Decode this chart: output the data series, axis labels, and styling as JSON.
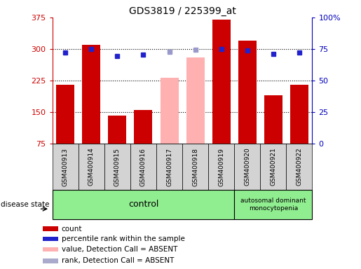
{
  "title": "GDS3819 / 225399_at",
  "samples": [
    "GSM400913",
    "GSM400914",
    "GSM400915",
    "GSM400916",
    "GSM400917",
    "GSM400918",
    "GSM400919",
    "GSM400920",
    "GSM400921",
    "GSM400922"
  ],
  "bar_values": [
    215,
    310,
    143,
    155,
    232,
    280,
    370,
    320,
    190,
    215
  ],
  "bar_colors": [
    "#cc0000",
    "#cc0000",
    "#cc0000",
    "#cc0000",
    "#ffb0b0",
    "#ffb0b0",
    "#cc0000",
    "#cc0000",
    "#cc0000",
    "#cc0000"
  ],
  "dot_values": [
    291,
    300,
    284,
    287,
    293,
    299,
    300,
    297,
    289,
    291
  ],
  "dot_colors": [
    "#2222cc",
    "#2222cc",
    "#2222cc",
    "#2222cc",
    "#9999cc",
    "#9999cc",
    "#2222cc",
    "#2222cc",
    "#2222cc",
    "#2222cc"
  ],
  "ylim_left": [
    75,
    375
  ],
  "yticks_left": [
    75,
    150,
    225,
    300,
    375
  ],
  "ytick_labels_left": [
    "75",
    "150",
    "225",
    "300",
    "375"
  ],
  "ylim_right": [
    0,
    100
  ],
  "yticks_right": [
    0,
    25,
    50,
    75,
    100
  ],
  "ytick_labels_right": [
    "0",
    "25",
    "50",
    "75",
    "100%"
  ],
  "hlines": [
    150,
    225,
    300
  ],
  "n_control": 7,
  "n_disease": 3,
  "control_label": "control",
  "disease_label": "autosomal dominant\nmonocytopenia",
  "disease_state_label": "disease state",
  "legend_items": [
    {
      "label": "count",
      "color": "#cc0000"
    },
    {
      "label": "percentile rank within the sample",
      "color": "#2222cc"
    },
    {
      "label": "value, Detection Call = ABSENT",
      "color": "#ffb0b0"
    },
    {
      "label": "rank, Detection Call = ABSENT",
      "color": "#aaaacc"
    }
  ],
  "bar_width": 0.7,
  "left_axis_color": "#cc0000",
  "right_axis_color": "#0000bb",
  "absent_bar_indices": [
    4,
    5
  ],
  "absent_dot_indices": [
    4,
    5
  ]
}
